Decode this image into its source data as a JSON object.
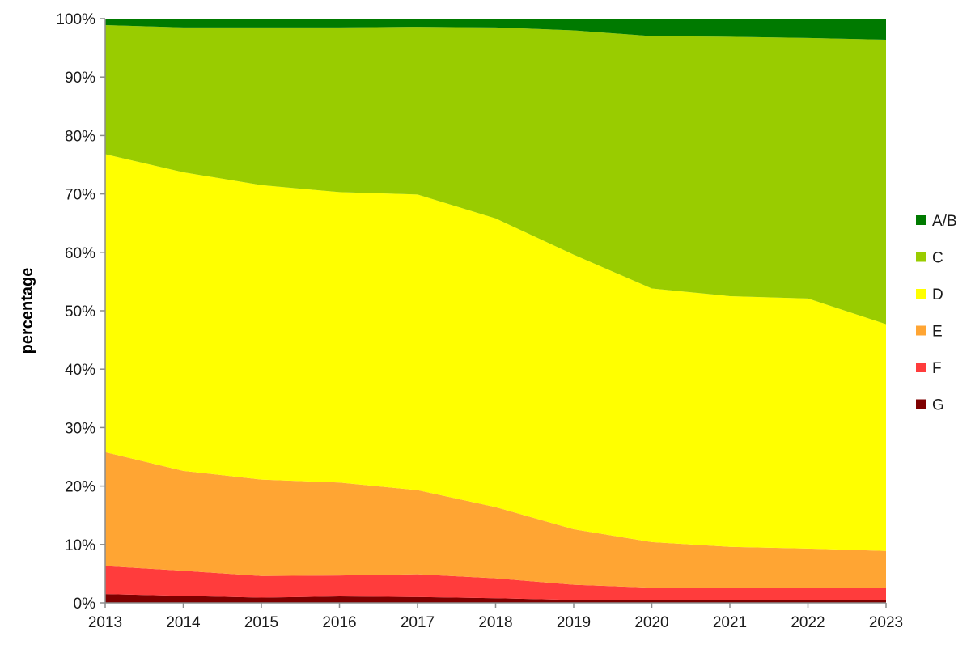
{
  "chart_data": {
    "type": "area",
    "stacked": true,
    "ylabel": "percentage",
    "xlabel": "",
    "title": "",
    "x": [
      "2013",
      "2014",
      "2015",
      "2016",
      "2017",
      "2018",
      "2019",
      "2020",
      "2021",
      "2022",
      "2023"
    ],
    "ylim": [
      0,
      100
    ],
    "y_ticks": [
      "0%",
      "10%",
      "20%",
      "30%",
      "40%",
      "50%",
      "60%",
      "70%",
      "80%",
      "90%",
      "100%"
    ],
    "grid": false,
    "legend_position": "right",
    "series": [
      {
        "name": "G",
        "color": "#7f0000",
        "values": [
          1.5,
          1.2,
          0.9,
          1.1,
          1.0,
          0.8,
          0.5,
          0.5,
          0.5,
          0.5,
          0.5
        ]
      },
      {
        "name": "F",
        "color": "#ff3c3c",
        "values": [
          4.8,
          4.3,
          3.7,
          3.6,
          3.9,
          3.4,
          2.6,
          2.1,
          2.1,
          2.1,
          2.0
        ]
      },
      {
        "name": "E",
        "color": "#ffa533",
        "values": [
          19.5,
          17.1,
          16.5,
          15.9,
          14.4,
          12.2,
          9.5,
          7.8,
          7.0,
          6.7,
          6.4
        ]
      },
      {
        "name": "D",
        "color": "#ffff00",
        "values": [
          51.0,
          51.1,
          50.4,
          49.7,
          50.6,
          49.4,
          47.0,
          43.4,
          42.9,
          42.8,
          38.8
        ]
      },
      {
        "name": "C",
        "color": "#99cc00",
        "values": [
          22.1,
          24.8,
          27.0,
          28.2,
          28.7,
          32.7,
          38.4,
          43.2,
          44.4,
          44.6,
          48.7
        ]
      },
      {
        "name": "A/B",
        "color": "#007a00",
        "values": [
          1.1,
          1.5,
          1.5,
          1.5,
          1.4,
          1.5,
          2.0,
          3.0,
          3.1,
          3.3,
          3.6
        ]
      }
    ],
    "legend_order": [
      "A/B",
      "C",
      "D",
      "E",
      "F",
      "G"
    ]
  }
}
